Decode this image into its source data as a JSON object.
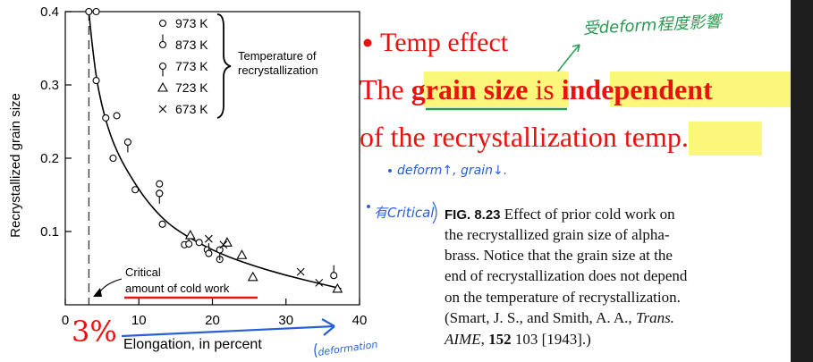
{
  "slide": {
    "bullet_main": "Temp effect",
    "sentence": {
      "part1": "The ",
      "hl1": "grain size",
      "part2": " is ",
      "hl2": "independent",
      "line2_a": "of the recrystallization ",
      "hl3": "temp",
      "line2_b": "."
    },
    "handwritten": {
      "top_note": "受deform程度影響",
      "note_grain": "deform↑, grain↓.",
      "note_critical": "有Critical",
      "note_deformation": "deformation",
      "big_percent": "3%"
    },
    "caption": {
      "fig_label": "FIG. 8.23",
      "lines": [
        "Effect of prior cold work on",
        "the recrystallized grain size of alpha-",
        "brass. Notice that the grain size at the",
        "end of recrystallization does not depend",
        "on the temperature of recrystallization."
      ],
      "ref_line1_a": "(Smart, J. S., and Smith, A. A., ",
      "ref_line1_b": "Trans.",
      "ref_line2_a": "AIME",
      "ref_line2_b": ", ",
      "ref_line2_c": "152",
      "ref_line2_d": " 103 [1943].)"
    },
    "colors": {
      "red": "#e8120e",
      "yellow": "#fbf77a",
      "green": "#2a9a52",
      "blue": "#2860d8",
      "dark_bg": "#1e1e1e"
    }
  },
  "chart_data": {
    "type": "scatter",
    "xlabel": "Elongation, in percent",
    "ylabel": "Recrystallized grain size",
    "xlim": [
      0,
      40
    ],
    "ylim": [
      0,
      0.4
    ],
    "xticks": [
      0,
      10,
      20,
      30,
      40
    ],
    "yticks": [
      0.1,
      0.2,
      0.3,
      0.4
    ],
    "legend_title": "Temperature of recrystallization",
    "legend_title_lines": [
      "Temperature of",
      "recrystallization"
    ],
    "legend_position": "top-right",
    "series": [
      {
        "name": "973 K",
        "marker": "circle",
        "points": [
          [
            3.2,
            0.4
          ],
          [
            4.2,
            0.4
          ],
          [
            4.2,
            0.306
          ],
          [
            5.5,
            0.255
          ],
          [
            6.5,
            0.2
          ],
          [
            7.0,
            0.258
          ],
          [
            9.5,
            0.157
          ],
          [
            12.8,
            0.165
          ],
          [
            12.8,
            0.152
          ],
          [
            13.2,
            0.11
          ],
          [
            16.2,
            0.082
          ],
          [
            18.2,
            0.085
          ],
          [
            19.3,
            0.075
          ],
          [
            21.0,
            0.062
          ]
        ]
      },
      {
        "name": "873 K",
        "marker": "circle-tail-down",
        "points": [
          [
            16.8,
            0.083
          ],
          [
            19.5,
            0.07
          ],
          [
            36.5,
            0.04
          ]
        ]
      },
      {
        "name": "773 K",
        "marker": "circle-tail-up",
        "points": [
          [
            8.5,
            0.222
          ],
          [
            12.8,
            0.152
          ],
          [
            21.0,
            0.075
          ]
        ]
      },
      {
        "name": "723 K",
        "marker": "triangle",
        "points": [
          [
            17.0,
            0.095
          ],
          [
            22.0,
            0.085
          ],
          [
            24.0,
            0.068
          ],
          [
            25.5,
            0.038
          ],
          [
            37.0,
            0.022
          ]
        ]
      },
      {
        "name": "673 K",
        "marker": "cross",
        "points": [
          [
            19.5,
            0.09
          ],
          [
            21.5,
            0.082
          ],
          [
            32.0,
            0.045
          ],
          [
            34.5,
            0.03
          ]
        ]
      }
    ],
    "curve": [
      [
        3.2,
        0.4
      ],
      [
        3.6,
        0.36
      ],
      [
        4.2,
        0.31
      ],
      [
        5.0,
        0.27
      ],
      [
        6.0,
        0.235
      ],
      [
        7.0,
        0.21
      ],
      [
        8.0,
        0.19
      ],
      [
        9.5,
        0.165
      ],
      [
        11.0,
        0.143
      ],
      [
        13.0,
        0.12
      ],
      [
        15.0,
        0.103
      ],
      [
        18.0,
        0.085
      ],
      [
        21.0,
        0.07
      ],
      [
        25.0,
        0.055
      ],
      [
        30.0,
        0.04
      ],
      [
        35.0,
        0.028
      ],
      [
        37.5,
        0.022
      ]
    ],
    "critical_x": 3.2,
    "annotation": "Critical amount of cold work",
    "annotation_lines": [
      "Critical",
      "amount of cold work"
    ]
  }
}
